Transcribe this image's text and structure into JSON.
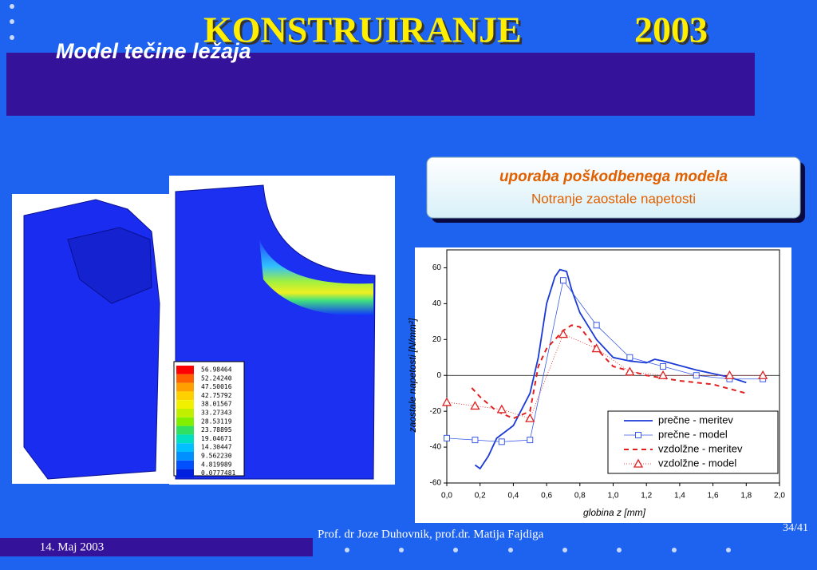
{
  "header": {
    "title": "KONSTRUIRANJE",
    "year": "2003",
    "subtitle": "Model tečine ležaja"
  },
  "info_box": {
    "title": "uporaba poškodbenega modela",
    "subtitle": "Notranje zaostale napetosti"
  },
  "fem_legend": [
    "56.98464",
    "52.24240",
    "47.50016",
    "42.75792",
    "38.01567",
    "33.27343",
    "28.53119",
    "23.78895",
    "19.04671",
    "14.30447",
    "9.562230",
    "4.819989",
    "0.0777481"
  ],
  "footer": {
    "authors": "Prof. dr Joze Duhovnik, prof.dr. Matija Fajdiga",
    "page": "34/41",
    "date": "14. Maj 2003"
  },
  "chart_data": {
    "type": "line",
    "x_label": "globina z [mm]",
    "y_label": "zaostale napetosti [N/mm²]",
    "xlim": [
      0,
      2
    ],
    "ylim": [
      -60,
      70
    ],
    "xticks": [
      {
        "value": 0,
        "label": "0,0"
      },
      {
        "value": 0.2,
        "label": "0,2"
      },
      {
        "value": 0.4,
        "label": "0,4"
      },
      {
        "value": 0.6,
        "label": "0,6"
      },
      {
        "value": 0.8,
        "label": "0,8"
      },
      {
        "value": 1,
        "label": "1,0"
      },
      {
        "value": 1.2,
        "label": "1,2"
      },
      {
        "value": 1.4,
        "label": "1,4"
      },
      {
        "value": 1.6,
        "label": "1,6"
      },
      {
        "value": 1.8,
        "label": "1,8"
      },
      {
        "value": 2,
        "label": "2,0"
      }
    ],
    "yticks": [
      -60,
      -40,
      -20,
      0,
      20,
      40,
      60
    ],
    "series": [
      {
        "name": "prečne - meritev",
        "color": "#1a3ad8",
        "style": "solid",
        "marker": "none",
        "x": [
          0.17,
          0.2,
          0.25,
          0.3,
          0.4,
          0.5,
          0.55,
          0.6,
          0.65,
          0.68,
          0.72,
          0.75,
          0.8,
          0.9,
          1.0,
          1.1,
          1.2,
          1.25,
          1.3,
          1.5,
          1.7,
          1.8
        ],
        "values": [
          -50,
          -52,
          -45,
          -35,
          -28,
          -10,
          10,
          40,
          55,
          59,
          58,
          48,
          35,
          20,
          10,
          8,
          7,
          9,
          8,
          3,
          -1,
          -4
        ]
      },
      {
        "name": "prečne - model",
        "color": "#3a5ae8",
        "style": "thin",
        "marker": "square",
        "x": [
          0,
          0.17,
          0.33,
          0.5,
          0.7,
          0.9,
          1.1,
          1.3,
          1.5,
          1.7,
          1.9
        ],
        "values": [
          -35,
          -36,
          -37,
          -36,
          53,
          28,
          10,
          5,
          0,
          -2,
          -2
        ]
      },
      {
        "name": "vzdolžne - meritev",
        "color": "#e02020",
        "style": "dashed",
        "marker": "none",
        "x": [
          0.15,
          0.2,
          0.3,
          0.4,
          0.5,
          0.55,
          0.6,
          0.7,
          0.75,
          0.8,
          0.9,
          1.0,
          1.2,
          1.4,
          1.6,
          1.8
        ],
        "values": [
          -7,
          -12,
          -20,
          -24,
          -20,
          5,
          15,
          25,
          28,
          27,
          15,
          5,
          0,
          -3,
          -5,
          -10
        ]
      },
      {
        "name": "vzdolžne - model",
        "color": "#e02020",
        "style": "dotted",
        "marker": "triangle",
        "x": [
          0,
          0.17,
          0.33,
          0.5,
          0.7,
          0.9,
          1.1,
          1.3,
          1.7,
          1.9
        ],
        "values": [
          -15,
          -17,
          -19,
          -24,
          23,
          15,
          2,
          0,
          0,
          0
        ]
      }
    ]
  }
}
